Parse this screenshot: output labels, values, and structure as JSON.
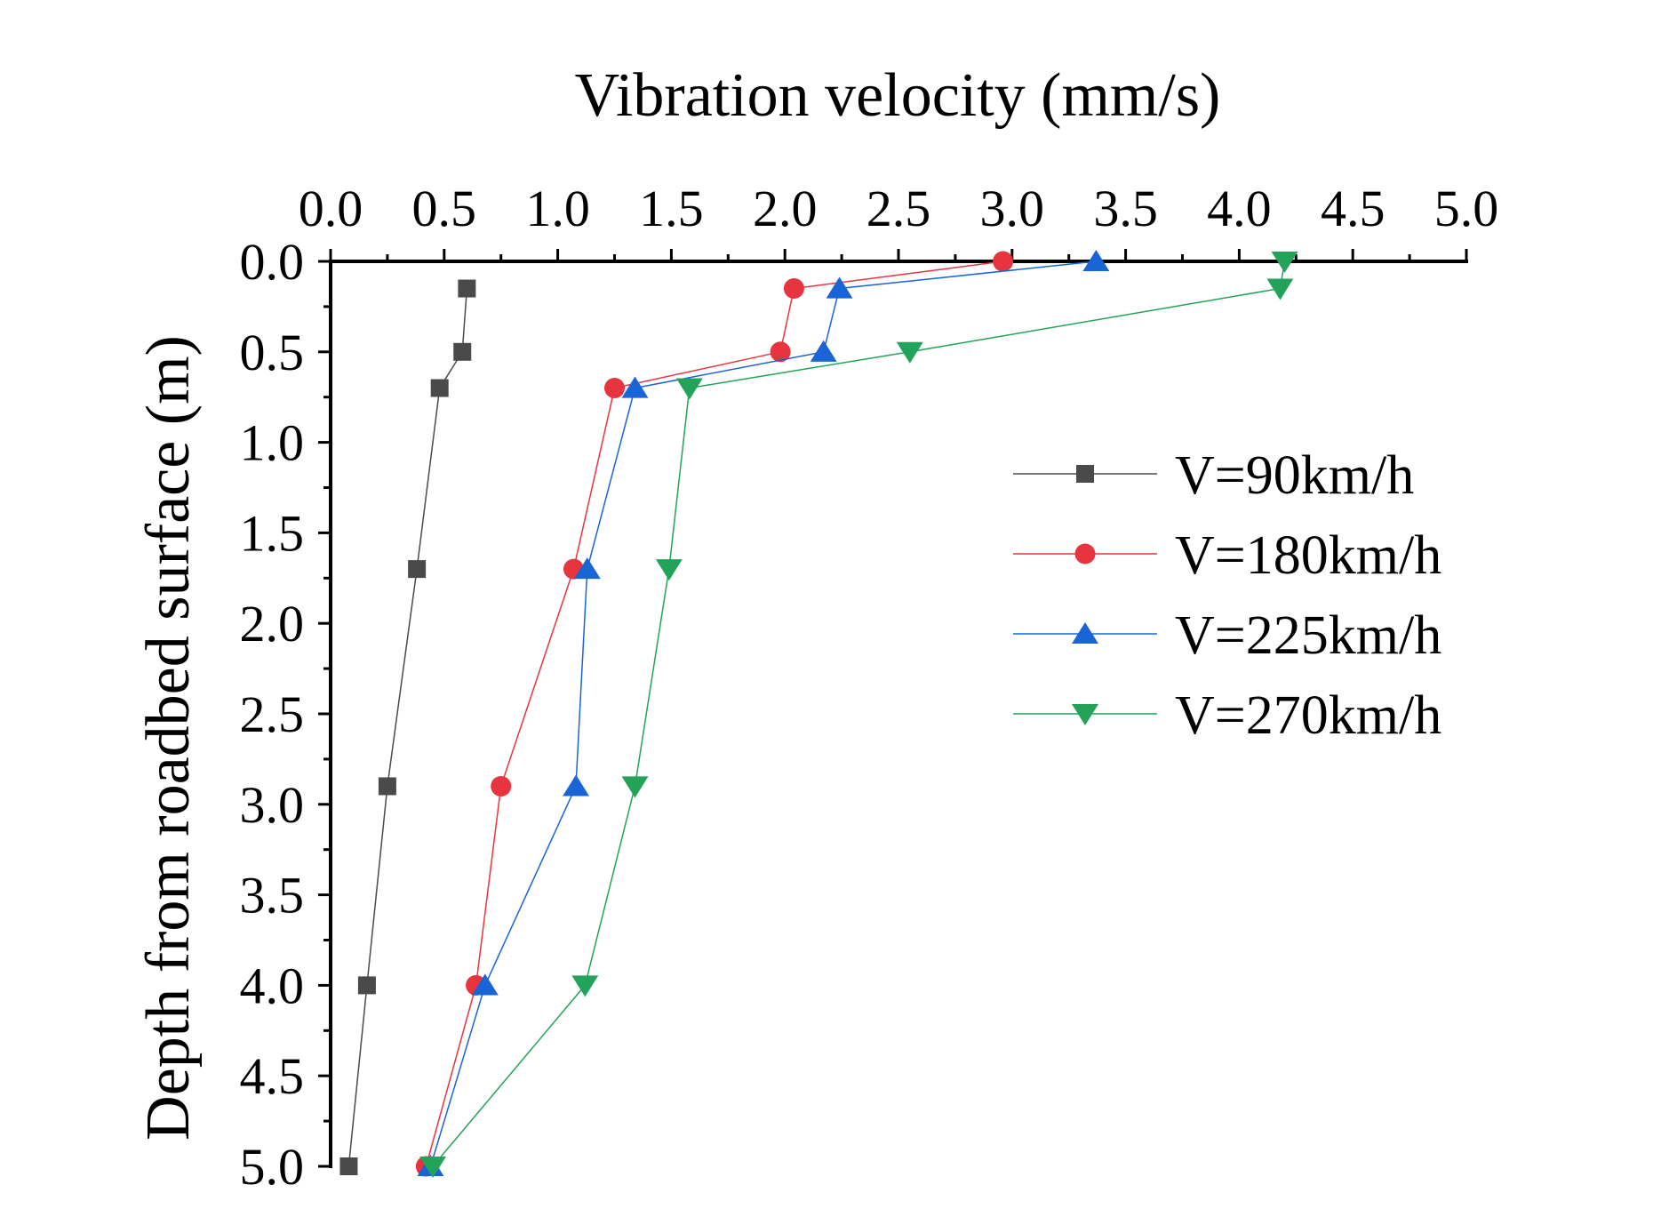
{
  "chart_data": {
    "type": "line",
    "title": "",
    "xlabel": "Vibration velocity (mm/s)",
    "ylabel": "Depth from roadbed surface (m)",
    "xlim": [
      0,
      5
    ],
    "ylim": [
      0,
      5
    ],
    "x_axis_position": "top",
    "y_axis_inverted": true,
    "grid": false,
    "legend_position": "right-middle",
    "x_ticks": [
      "0.0",
      "0.5",
      "1.0",
      "1.5",
      "2.0",
      "2.5",
      "3.0",
      "3.5",
      "4.0",
      "4.5",
      "5.0"
    ],
    "y_ticks": [
      "0.0",
      "0.5",
      "1.0",
      "1.5",
      "2.0",
      "2.5",
      "3.0",
      "3.5",
      "4.0",
      "4.5",
      "5.0"
    ],
    "series": [
      {
        "name": "V=90km/h",
        "color": "#4a4a4a",
        "marker": "square",
        "depth": [
          0.15,
          0.5,
          0.7,
          1.7,
          2.9,
          4.0,
          5.0
        ],
        "velocity": [
          0.6,
          0.58,
          0.48,
          0.38,
          0.25,
          0.16,
          0.08
        ]
      },
      {
        "name": "V=180km/h",
        "color": "#e8343e",
        "marker": "circle",
        "depth": [
          0.0,
          0.15,
          0.5,
          0.7,
          1.7,
          2.9,
          4.0,
          5.0
        ],
        "velocity": [
          2.96,
          2.04,
          1.98,
          1.25,
          1.07,
          0.75,
          0.64,
          0.42
        ]
      },
      {
        "name": "V=225km/h",
        "color": "#1a65d6",
        "marker": "triangle-up",
        "depth": [
          0.0,
          0.15,
          0.5,
          0.7,
          1.7,
          2.9,
          4.0,
          5.0
        ],
        "velocity": [
          3.37,
          2.24,
          2.17,
          1.34,
          1.13,
          1.08,
          0.68,
          0.44
        ]
      },
      {
        "name": "V=270km/h",
        "color": "#23a35a",
        "marker": "triangle-down",
        "depth": [
          0.0,
          0.15,
          0.5,
          0.7,
          1.7,
          2.9,
          4.0,
          5.0
        ],
        "velocity": [
          4.2,
          4.18,
          2.55,
          1.58,
          1.49,
          1.34,
          1.12,
          0.45
        ]
      }
    ]
  }
}
